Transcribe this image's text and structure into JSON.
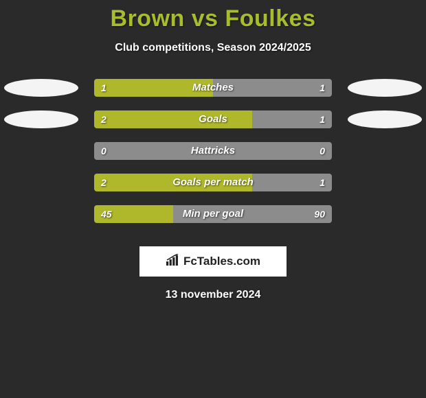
{
  "title": "Brown vs Foulkes",
  "subtitle": "Club competitions, Season 2024/2025",
  "date": "13 november 2024",
  "colors": {
    "background": "#2a2a2a",
    "accent": "#a8bc2e",
    "bar_fill": "#afb82b",
    "bar_rest": "#8c8c8c",
    "ellipse_white": "#f4f4f4",
    "text": "#ffffff"
  },
  "logo": {
    "text": "FcTables.com"
  },
  "rows": [
    {
      "label": "Matches",
      "left_value": "1",
      "right_value": "1",
      "fill_percent": 50,
      "left_ellipse": true,
      "right_ellipse": true,
      "left_ellipse_color": "#f4f4f4",
      "right_ellipse_color": "#f4f4f4"
    },
    {
      "label": "Goals",
      "left_value": "2",
      "right_value": "1",
      "fill_percent": 66.6,
      "left_ellipse": true,
      "right_ellipse": true,
      "left_ellipse_color": "#f4f4f4",
      "right_ellipse_color": "#f4f4f4"
    },
    {
      "label": "Hattricks",
      "left_value": "0",
      "right_value": "0",
      "fill_percent": 0,
      "left_ellipse": false,
      "right_ellipse": false
    },
    {
      "label": "Goals per match",
      "left_value": "2",
      "right_value": "1",
      "fill_percent": 66.6,
      "left_ellipse": false,
      "right_ellipse": false
    },
    {
      "label": "Min per goal",
      "left_value": "45",
      "right_value": "90",
      "fill_percent": 33.3,
      "left_ellipse": false,
      "right_ellipse": false
    }
  ]
}
